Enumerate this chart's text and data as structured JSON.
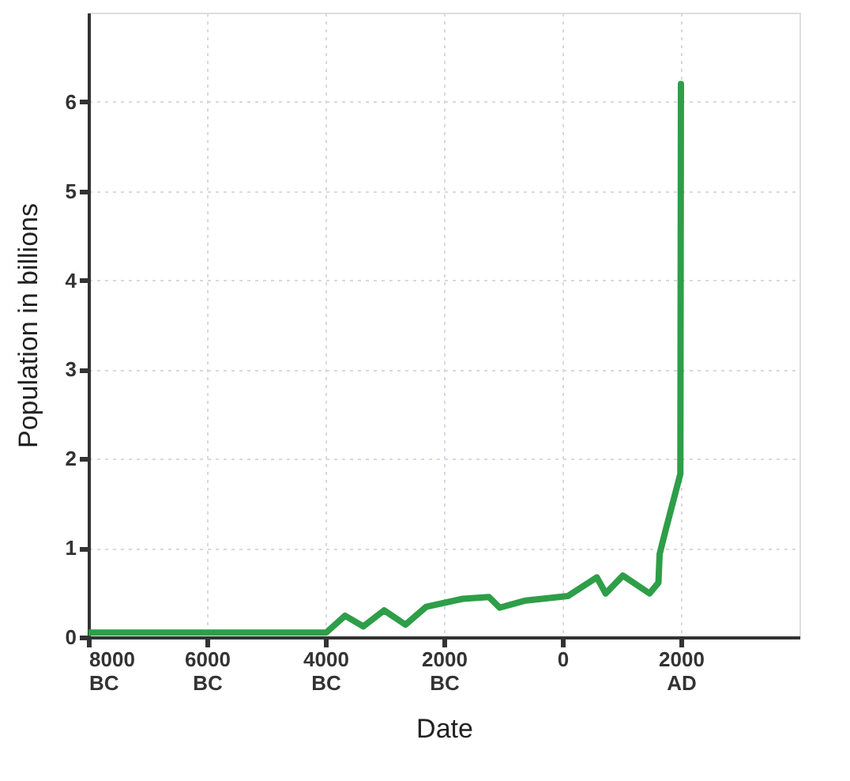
{
  "chart_data": {
    "type": "line",
    "xlabel": "Date",
    "ylabel": "Population in billions",
    "xlim": [
      -8000,
      4000
    ],
    "ylim": [
      0,
      7
    ],
    "xticks": [
      {
        "value": -8000,
        "label": "8000\nBC"
      },
      {
        "value": -6000,
        "label": "6000\nBC"
      },
      {
        "value": -4000,
        "label": "4000\nBC"
      },
      {
        "value": -2000,
        "label": "2000\nBC"
      },
      0,
      {
        "value": 2000,
        "label": "2000\nAD"
      }
    ],
    "yticks": [
      0,
      1,
      2,
      3,
      4,
      5,
      6
    ],
    "grid": true,
    "marker": "none",
    "line_style": "solid",
    "series": [
      {
        "color": "#2e9e48",
        "x": [
          -8000,
          -3990,
          -3670,
          -3360,
          -3010,
          -2650,
          -2300,
          -1680,
          -1240,
          -1060,
          -620,
          90,
          580,
          730,
          1020,
          1470,
          1620,
          1640,
          1730,
          1990,
          2000
        ],
        "values": [
          0.05,
          0.05,
          0.24,
          0.12,
          0.3,
          0.14,
          0.34,
          0.43,
          0.45,
          0.33,
          0.41,
          0.46,
          0.67,
          0.49,
          0.69,
          0.49,
          0.61,
          0.93,
          1.17,
          1.83,
          6.2
        ]
      }
    ]
  }
}
